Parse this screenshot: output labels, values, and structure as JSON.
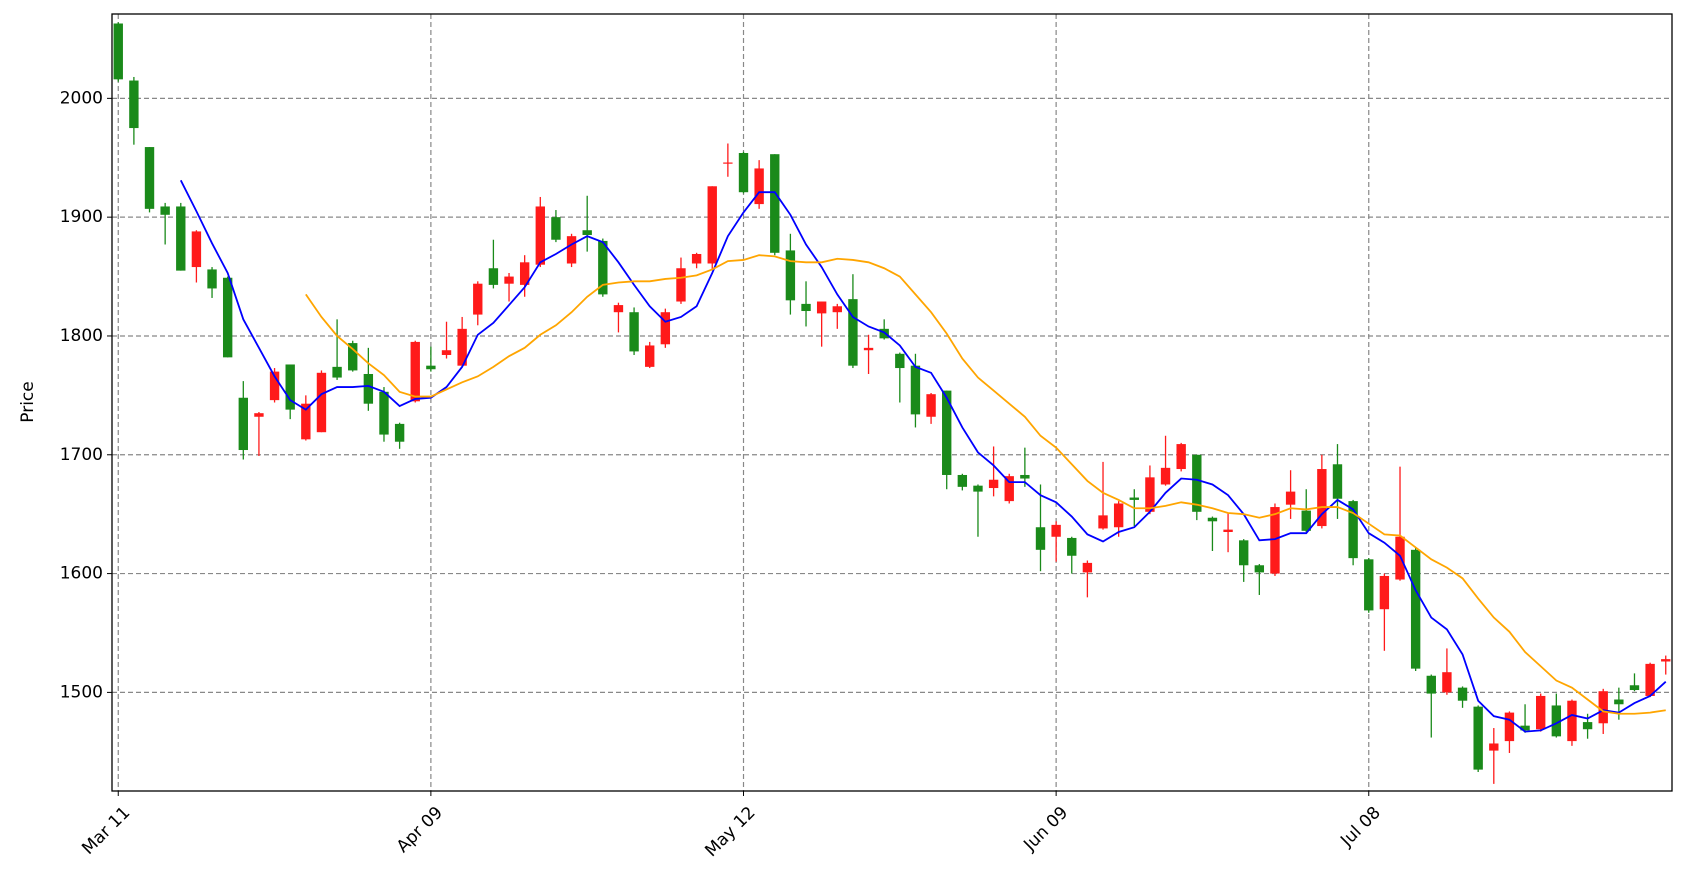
{
  "chart_data": {
    "type": "candlestick",
    "ylabel": "Price",
    "xlim": [
      -0.4,
      99.4
    ],
    "xticks": [
      {
        "value": 0,
        "label": "Mar 11"
      },
      {
        "value": 20,
        "label": "Apr 09"
      },
      {
        "value": 40,
        "label": "May 12"
      },
      {
        "value": 60,
        "label": "Jun 09"
      },
      {
        "value": 80,
        "label": "Jul 08"
      }
    ],
    "ylim": [
      1417,
      2071
    ],
    "yticks": [
      1500,
      1600,
      1700,
      1800,
      1900,
      2000
    ],
    "grid": true,
    "up_color": "#ff1a1a",
    "down_color": "#1a8a1a",
    "open": [
      2063,
      2015,
      1959,
      1909,
      1909,
      1858,
      1856,
      1849,
      1748,
      1732,
      1746,
      1776,
      1713,
      1719,
      1774,
      1794,
      1768,
      1753,
      1726,
      1745,
      1775,
      1784,
      1775,
      1818,
      1857,
      1844,
      1843,
      1860,
      1900,
      1861,
      1889,
      1880,
      1820,
      1820,
      1774,
      1793,
      1829,
      1861,
      1861,
      1945,
      1954,
      1911,
      1953,
      1872,
      1827,
      1819,
      1820,
      1831,
      1788,
      1806,
      1785,
      1775,
      1732,
      1754,
      1683,
      1674,
      1672,
      1661,
      1683,
      1639,
      1631,
      1630,
      1601,
      1638,
      1639,
      1664,
      1652,
      1675,
      1688,
      1700,
      1647,
      1635,
      1628,
      1607,
      1600,
      1658,
      1653,
      1640,
      1692,
      1661,
      1612,
      1570,
      1595,
      1620,
      1514,
      1500,
      1504,
      1488,
      1451,
      1459,
      1472,
      1469,
      1489,
      1459,
      1475,
      1474,
      1494,
      1506,
      1497,
      1526
    ],
    "high": [
      2064,
      2018,
      1959,
      1912,
      1912,
      1889,
      1858,
      1850,
      1762,
      1736,
      1773,
      1776,
      1750,
      1771,
      1814,
      1796,
      1790,
      1757,
      1727,
      1796,
      1791,
      1812,
      1816,
      1846,
      1881,
      1853,
      1868,
      1917,
      1906,
      1886,
      1918,
      1882,
      1828,
      1824,
      1795,
      1823,
      1866,
      1870,
      1926,
      1962,
      1955,
      1948,
      1953,
      1886,
      1846,
      1829,
      1827,
      1852,
      1801,
      1814,
      1786,
      1785,
      1752,
      1754,
      1684,
      1675,
      1707,
      1684,
      1706,
      1675,
      1644,
      1631,
      1611,
      1694,
      1661,
      1671,
      1691,
      1716,
      1710,
      1700,
      1648,
      1651,
      1629,
      1608,
      1659,
      1687,
      1671,
      1700,
      1709,
      1662,
      1613,
      1600,
      1690,
      1622,
      1515,
      1537,
      1505,
      1489,
      1470,
      1484,
      1490,
      1499,
      1499,
      1494,
      1482,
      1503,
      1504,
      1516,
      1525,
      1531
    ],
    "low": [
      2014,
      1961,
      1904,
      1877,
      1855,
      1845,
      1832,
      1782,
      1696,
      1699,
      1744,
      1730,
      1712,
      1719,
      1763,
      1770,
      1737,
      1711,
      1705,
      1744,
      1770,
      1781,
      1775,
      1809,
      1840,
      1829,
      1833,
      1858,
      1879,
      1858,
      1871,
      1833,
      1803,
      1784,
      1773,
      1790,
      1827,
      1857,
      1856,
      1934,
      1920,
      1907,
      1868,
      1818,
      1808,
      1791,
      1806,
      1773,
      1768,
      1797,
      1744,
      1723,
      1726,
      1671,
      1670,
      1631,
      1665,
      1659,
      1673,
      1602,
      1610,
      1600,
      1580,
      1637,
      1631,
      1640,
      1650,
      1674,
      1686,
      1645,
      1619,
      1618,
      1593,
      1582,
      1598,
      1646,
      1635,
      1638,
      1646,
      1607,
      1567,
      1535,
      1594,
      1518,
      1462,
      1498,
      1487,
      1433,
      1423,
      1449,
      1466,
      1467,
      1462,
      1455,
      1461,
      1465,
      1477,
      1501,
      1496,
      1515
    ],
    "close": [
      2016,
      1975,
      1907,
      1902,
      1855,
      1888,
      1840,
      1782,
      1704,
      1735,
      1770,
      1738,
      1743,
      1769,
      1765,
      1771,
      1743,
      1717,
      1711,
      1795,
      1772,
      1788,
      1806,
      1844,
      1843,
      1850,
      1862,
      1909,
      1881,
      1884,
      1885,
      1835,
      1826,
      1787,
      1792,
      1820,
      1857,
      1869,
      1926,
      1946,
      1921,
      1941,
      1870,
      1830,
      1821,
      1829,
      1825,
      1775,
      1790,
      1798,
      1773,
      1734,
      1751,
      1683,
      1673,
      1669,
      1679,
      1682,
      1680,
      1620,
      1641,
      1615,
      1609,
      1649,
      1659,
      1662,
      1681,
      1689,
      1709,
      1652,
      1644,
      1637,
      1607,
      1601,
      1656,
      1669,
      1636,
      1688,
      1663,
      1613,
      1569,
      1598,
      1631,
      1520,
      1499,
      1517,
      1493,
      1435,
      1457,
      1483,
      1468,
      1497,
      1463,
      1493,
      1469,
      1501,
      1490,
      1502,
      1524,
      1528
    ],
    "series": [
      {
        "color": "#0000ff",
        "values": [
          null,
          null,
          null,
          null,
          1931,
          1905,
          1878,
          1853,
          1814,
          1790,
          1766,
          1746,
          1738,
          1751,
          1757,
          1757,
          1758,
          1753,
          1741,
          1747,
          1748,
          1757,
          1774,
          1801,
          1811,
          1826,
          1841,
          1862,
          1869,
          1877,
          1884,
          1879,
          1862,
          1843,
          1825,
          1812,
          1816,
          1825,
          1853,
          1884,
          1904,
          1921,
          1921,
          1902,
          1877,
          1858,
          1835,
          1816,
          1808,
          1803,
          1792,
          1774,
          1769,
          1748,
          1723,
          1702,
          1691,
          1677,
          1677,
          1666,
          1660,
          1648,
          1633,
          1627,
          1635,
          1639,
          1652,
          1668,
          1680,
          1679,
          1675,
          1666,
          1650,
          1628,
          1629,
          1634,
          1634,
          1650,
          1662,
          1654,
          1634,
          1626,
          1615,
          1586,
          1563,
          1553,
          1532,
          1493,
          1480,
          1477,
          1467,
          1468,
          1474,
          1481,
          1478,
          1485,
          1483,
          1491,
          1497,
          1509
        ]
      },
      {
        "color": "#ffa500",
        "values": [
          null,
          null,
          null,
          null,
          null,
          null,
          null,
          null,
          null,
          null,
          null,
          null,
          1835,
          1816,
          1800,
          1789,
          1777,
          1767,
          1753,
          1749,
          1749,
          1755,
          1761,
          1766,
          1774,
          1783,
          1790,
          1801,
          1809,
          1820,
          1833,
          1843,
          1845,
          1846,
          1846,
          1848,
          1849,
          1851,
          1856,
          1863,
          1864,
          1868,
          1867,
          1863,
          1862,
          1862,
          1865,
          1864,
          1862,
          1857,
          1850,
          1835,
          1820,
          1802,
          1781,
          1765,
          1754,
          1743,
          1732,
          1716,
          1706,
          1692,
          1678,
          1668,
          1662,
          1655,
          1655,
          1657,
          1660,
          1658,
          1655,
          1651,
          1650,
          1647,
          1650,
          1655,
          1654,
          1656,
          1656,
          1651,
          1642,
          1633,
          1632,
          1622,
          1612,
          1605,
          1596,
          1579,
          1563,
          1551,
          1534,
          1522,
          1510,
          1504,
          1494,
          1484,
          1482,
          1482,
          1483,
          1485
        ]
      }
    ]
  }
}
